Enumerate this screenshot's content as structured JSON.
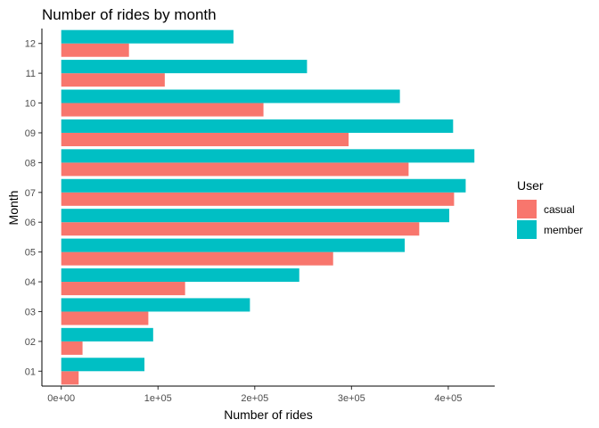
{
  "chart_data": {
    "type": "bar",
    "orientation": "horizontal",
    "title": "Number of rides by month",
    "xlabel": "Number of rides",
    "ylabel": "Month",
    "categories": [
      "01",
      "02",
      "03",
      "04",
      "05",
      "06",
      "07",
      "08",
      "09",
      "10",
      "11",
      "12"
    ],
    "series": [
      {
        "name": "casual",
        "color": "#F8766D",
        "values": [
          18000,
          22000,
          90000,
          128000,
          281000,
          370000,
          406000,
          359000,
          297000,
          209000,
          107000,
          70000
        ]
      },
      {
        "name": "member",
        "color": "#00BFC4",
        "values": [
          86000,
          95000,
          195000,
          246000,
          355000,
          401000,
          418000,
          427000,
          405000,
          350000,
          254000,
          178000
        ]
      }
    ],
    "xlim": [
      -20000,
      448000
    ],
    "xticks": [
      0,
      100000,
      200000,
      300000,
      400000
    ],
    "xtick_labels": [
      "0e+00",
      "1e+05",
      "2e+05",
      "3e+05",
      "4e+05"
    ],
    "legend": {
      "title": "User",
      "placement": "right"
    },
    "grid": false
  }
}
